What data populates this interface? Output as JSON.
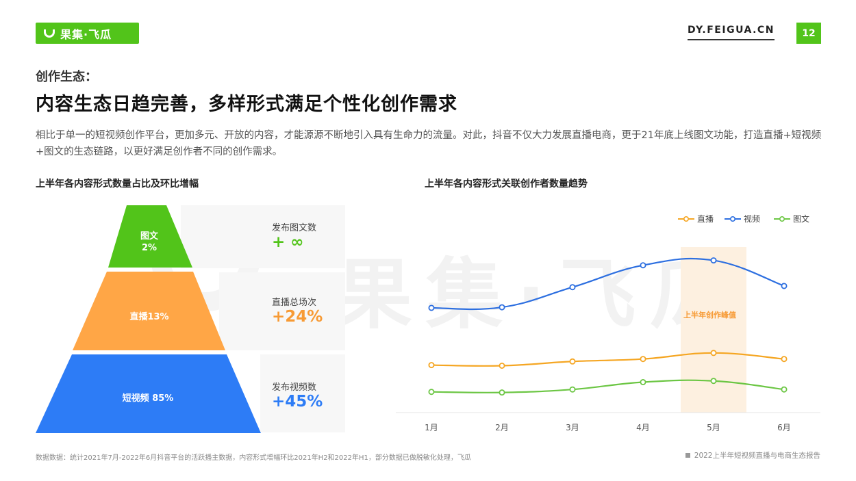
{
  "header": {
    "logo_text": "果集·飞瓜",
    "site_url": "DY.FEIGUA.CN",
    "page_number": "12"
  },
  "section": {
    "kicker": "创作生态：",
    "headline": "内容生态日趋完善，多样形式满足个性化创作需求",
    "intro": "相比于单一的短视频创作平台，更加多元、开放的内容，才能源源不断地引入具有生命力的流量。对此，抖音不仅大力发展直播电商，更于21年底上线图文功能，打造直播+短视频+图文的生态链路，以更好满足创作者不同的创作需求。"
  },
  "left_panel": {
    "title": "上半年各内容形式数量占比及环比增幅",
    "stats": [
      {
        "label": "发布图文数",
        "value": "+ ∞"
      },
      {
        "label": "直播总场次",
        "value": "+24%"
      },
      {
        "label": "发布视频数",
        "value": "+45%"
      }
    ]
  },
  "right_panel": {
    "title": "上半年各内容形式关联创作者数量趋势",
    "peak_label": "上半年创作峰值"
  },
  "chart_data": [
    {
      "type": "pyramid",
      "categories": [
        "图文",
        "直播",
        "短视频"
      ],
      "values": [
        2,
        13,
        85
      ],
      "labels": [
        "图文\n2%",
        "直播13%",
        "短视频  85%"
      ],
      "colors": {
        "图文": "#52c41a",
        "直播": "#ffa646",
        "短视频": "#2d7cf6"
      },
      "growth": {
        "图文": "+ ∞",
        "直播": "+24%",
        "短视频": "+45%"
      }
    },
    {
      "type": "line",
      "categories": [
        "1月",
        "2月",
        "3月",
        "4月",
        "5月",
        "6月"
      ],
      "series": [
        {
          "name": "直播",
          "color": "#f5a623",
          "values": [
            0.39,
            0.385,
            0.42,
            0.44,
            0.49,
            0.44
          ]
        },
        {
          "name": "视频",
          "color": "#2d6fe0",
          "values": [
            0.86,
            0.865,
            1.03,
            1.21,
            1.25,
            1.04
          ]
        },
        {
          "name": "图文",
          "color": "#6cc644",
          "values": [
            0.17,
            0.165,
            0.19,
            0.25,
            0.26,
            0.19
          ]
        }
      ],
      "ylim": [
        0,
        1.45
      ],
      "y_axis_shown": false,
      "highlight": {
        "category": "5月",
        "label": "上半年创作峰值",
        "color": "#fdf0e0"
      },
      "legend_position": "top-right",
      "grid": false
    }
  ],
  "footer": {
    "source_note": "数据数据：统计2021年7月-2022年6月抖音平台的活跃播主数据，内容形式增幅环比2021年H2和2022年H1，部分数据已做脱敏化处理，飞瓜",
    "report_title": "2022上半年短视频直播与电商生态报告"
  }
}
